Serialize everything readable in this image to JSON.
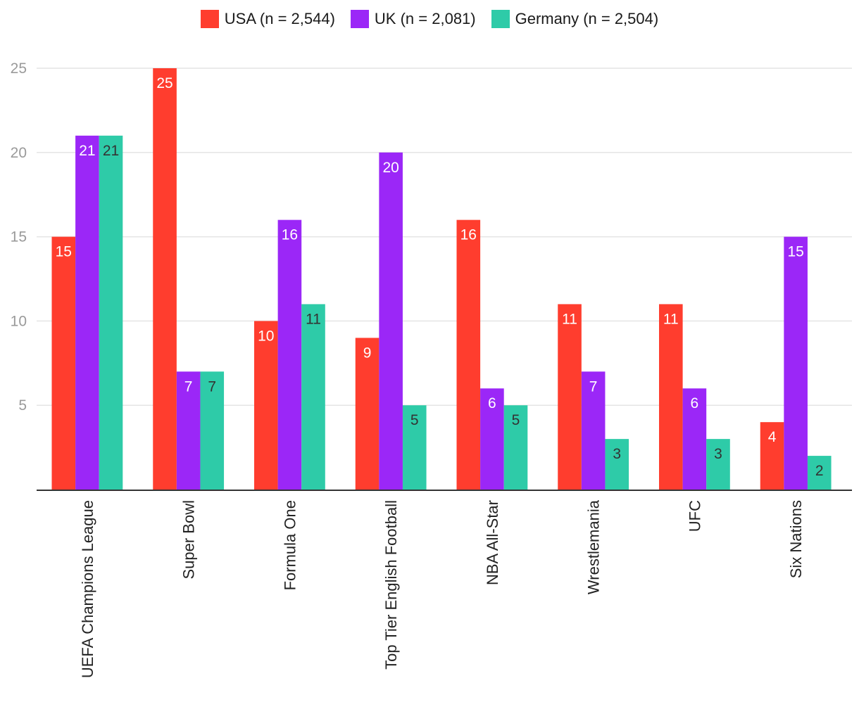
{
  "chart_data": {
    "type": "bar",
    "title": "",
    "xlabel": "",
    "ylabel": "",
    "ylim": [
      0,
      25
    ],
    "yticks": [
      5,
      10,
      15,
      20,
      25
    ],
    "grid": true,
    "legend_position": "top-center",
    "categories": [
      "UEFA Champions League",
      "Super Bowl",
      "Formula One",
      "Top Tier English Football",
      "NBA All-Star",
      "Wrestlemania",
      "UFC",
      "Six Nations"
    ],
    "series": [
      {
        "name": "USA (n = 2,544)",
        "color": "#ff3d2e",
        "label_style": "light",
        "values": [
          15,
          25,
          10,
          9,
          16,
          11,
          11,
          4
        ]
      },
      {
        "name": "UK (n = 2,081)",
        "color": "#9b27f7",
        "label_style": "light",
        "values": [
          21,
          7,
          16,
          20,
          6,
          7,
          6,
          15
        ]
      },
      {
        "name": "Germany (n = 2,504)",
        "color": "#2ecba8",
        "label_style": "dark",
        "values": [
          21,
          7,
          11,
          5,
          5,
          3,
          3,
          2
        ]
      }
    ]
  }
}
